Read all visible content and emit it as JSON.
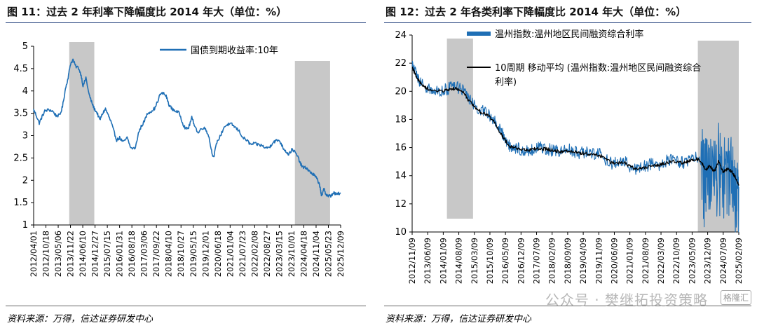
{
  "watermark": {
    "text": "公众号 · 樊继拓投资策略",
    "badge": "格隆汇"
  },
  "panels": [
    {
      "title": "图 11：过去 2 年利率下降幅度比 2014 年大（单位：%）",
      "source": "资料来源：万得，信达证券研发中心",
      "legend": [
        "国债到期收益率:10年"
      ]
    },
    {
      "title": "图 12：过去 2 年各类利率下降幅度比 2014 年大（单位：%）",
      "source": "资料来源：万得，信达证券研发中心",
      "legend": [
        "温州指数:温州地区民间融资综合利率",
        "10周期 移动平均 (温州指数:温州地区民间融资综合利率)"
      ]
    }
  ],
  "chart_data": [
    {
      "type": "line",
      "title": "",
      "ylim": [
        1,
        5
      ],
      "yticks": [
        "1",
        "1.5",
        "2",
        "2.5",
        "3",
        "3.5",
        "4",
        "4.5",
        "5"
      ],
      "xlim": [
        "2012-04-01",
        "2025-12-09"
      ],
      "xtick_labels": [
        "2012/04/01",
        "2012/10/18",
        "2013/05/06",
        "2013/11/22",
        "2014/06/10",
        "2014/12/27",
        "2015/07/15",
        "2016/01/31",
        "2016/08/18",
        "2017/03/06",
        "2017/09/22",
        "2018/04/10",
        "2018/10/27",
        "2019/05/15",
        "2019/12/01",
        "2020/06/18",
        "2021/01/04",
        "2021/07/23",
        "2022/02/08",
        "2022/08/27",
        "2023/03/15",
        "2023/10/01",
        "2024/04/18",
        "2024/11/04",
        "2025/05/23",
        "2025/12/09"
      ],
      "shaded_ranges": [
        [
          "2013-11-01",
          "2014-12-15"
        ],
        [
          "2023-11-25",
          "2025-06-20"
        ]
      ],
      "grid": false,
      "legend_position": "top-right",
      "series": [
        {
          "name": "国债到期收益率:10年",
          "color": "#1f6fb5",
          "x": [
            "2012-04-01",
            "2012-05-15",
            "2012-07-01",
            "2012-08-15",
            "2012-10-01",
            "2012-12-01",
            "2013-02-01",
            "2013-04-01",
            "2013-06-01",
            "2013-07-15",
            "2013-09-01",
            "2013-10-15",
            "2013-11-20",
            "2014-01-01",
            "2014-02-15",
            "2014-04-01",
            "2014-05-15",
            "2014-06-15",
            "2014-08-01",
            "2014-09-15",
            "2014-11-01",
            "2014-12-15",
            "2015-02-01",
            "2015-03-15",
            "2015-05-01",
            "2015-06-15",
            "2015-08-01",
            "2015-09-15",
            "2015-11-01",
            "2015-12-15",
            "2016-02-01",
            "2016-04-01",
            "2016-06-01",
            "2016-08-01",
            "2016-10-15",
            "2016-12-01",
            "2017-01-15",
            "2017-03-01",
            "2017-05-01",
            "2017-07-01",
            "2017-09-01",
            "2017-11-20",
            "2018-01-10",
            "2018-03-01",
            "2018-04-10",
            "2018-06-01",
            "2018-08-01",
            "2018-10-01",
            "2018-12-01",
            "2019-01-15",
            "2019-03-01",
            "2019-04-20",
            "2019-06-01",
            "2019-08-01",
            "2019-10-01",
            "2019-12-01",
            "2020-01-20",
            "2020-03-01",
            "2020-04-10",
            "2020-06-01",
            "2020-08-01",
            "2020-10-01",
            "2020-12-01",
            "2021-02-01",
            "2021-04-01",
            "2021-06-01",
            "2021-08-01",
            "2021-10-01",
            "2021-12-01",
            "2022-02-01",
            "2022-04-01",
            "2022-06-01",
            "2022-08-15",
            "2022-10-15",
            "2022-11-30",
            "2023-01-15",
            "2023-03-15",
            "2023-05-15",
            "2023-07-01",
            "2023-08-15",
            "2023-10-15",
            "2023-12-10",
            "2024-01-20",
            "2024-03-01",
            "2024-04-15",
            "2024-06-01",
            "2024-07-15",
            "2024-09-01",
            "2024-10-15",
            "2024-12-01",
            "2025-01-10",
            "2025-02-01",
            "2025-03-15",
            "2025-04-15",
            "2025-05-23",
            "2025-07-01",
            "2025-08-15",
            "2025-10-01",
            "2025-12-09"
          ],
          "values": [
            3.58,
            3.45,
            3.28,
            3.42,
            3.55,
            3.58,
            3.55,
            3.45,
            3.45,
            3.65,
            4.05,
            4.3,
            4.6,
            4.7,
            4.55,
            4.52,
            4.35,
            4.1,
            4.3,
            3.95,
            3.75,
            3.6,
            3.5,
            3.35,
            3.5,
            3.6,
            3.45,
            3.3,
            3.08,
            2.9,
            2.95,
            2.85,
            2.95,
            2.72,
            2.72,
            3.05,
            3.2,
            3.3,
            3.5,
            3.55,
            3.62,
            3.92,
            3.95,
            3.88,
            3.7,
            3.6,
            3.55,
            3.5,
            3.25,
            3.15,
            3.18,
            3.4,
            3.25,
            3.05,
            3.18,
            3.15,
            3.0,
            2.7,
            2.5,
            2.85,
            3.0,
            3.2,
            3.25,
            3.25,
            3.18,
            3.1,
            2.95,
            2.9,
            2.8,
            2.82,
            2.8,
            2.78,
            2.72,
            2.75,
            2.85,
            2.88,
            2.9,
            2.73,
            2.65,
            2.58,
            2.7,
            2.6,
            2.5,
            2.35,
            2.28,
            2.28,
            2.2,
            2.15,
            2.1,
            2.0,
            1.85,
            1.62,
            1.82,
            1.68,
            1.65,
            1.65,
            1.72,
            1.68,
            1.72
          ]
        }
      ]
    },
    {
      "type": "line",
      "title": "",
      "ylim": [
        10,
        24
      ],
      "yticks": [
        "10",
        "12",
        "14",
        "16",
        "18",
        "20",
        "22",
        "24"
      ],
      "xlim": [
        "2012-11-09",
        "2025-05-09"
      ],
      "xtick_labels": [
        "2012/11/09",
        "2013/06/09",
        "2014/01/09",
        "2014/08/09",
        "2015/03/09",
        "2015/10/09",
        "2016/05/09",
        "2016/12/09",
        "2017/07/09",
        "2018/02/09",
        "2018/09/09",
        "2019/04/09",
        "2019/11/09",
        "2020/06/09",
        "2021/01/09",
        "2021/08/09",
        "2022/03/09",
        "2022/10/09",
        "2023/05/09",
        "2023/12/09",
        "2024/07/09",
        "2025/02/09"
      ],
      "shaded_ranges": [
        [
          "2014-03-10",
          "2015-03-10"
        ],
        [
          "2023-10-15",
          "2025-05-09"
        ]
      ],
      "grid": false,
      "legend_position": "top",
      "series": [
        {
          "name": "温州指数:温州地区民间融资综合利率",
          "color": "#1f6fb5",
          "x": [
            "2012-11-09",
            "2013-01-01",
            "2013-03-01",
            "2013-06-01",
            "2013-09-01",
            "2014-01-01",
            "2014-04-01",
            "2014-07-01",
            "2014-10-01",
            "2015-01-01",
            "2015-04-01",
            "2015-07-01",
            "2015-10-01",
            "2016-01-01",
            "2016-04-01",
            "2016-06-01",
            "2016-08-01",
            "2016-10-01",
            "2017-01-01",
            "2017-04-01",
            "2017-07-01",
            "2017-10-01",
            "2018-01-01",
            "2018-04-01",
            "2018-07-01",
            "2018-10-01",
            "2019-01-01",
            "2019-04-01",
            "2019-07-01",
            "2019-10-01",
            "2020-01-01",
            "2020-04-01",
            "2020-07-01",
            "2020-10-01",
            "2021-01-01",
            "2021-04-01",
            "2021-07-01",
            "2021-10-01",
            "2022-01-01",
            "2022-04-01",
            "2022-07-01",
            "2022-10-01",
            "2023-01-01",
            "2023-04-01",
            "2023-07-01",
            "2023-10-01",
            "2023-12-01",
            "2024-02-01",
            "2024-04-01",
            "2024-06-01",
            "2024-08-01",
            "2024-10-01",
            "2024-12-01",
            "2025-02-01",
            "2025-04-01",
            "2025-05-09"
          ],
          "values": [
            21.9,
            21.2,
            20.7,
            20.2,
            20.1,
            20.0,
            20.2,
            20.3,
            20.2,
            19.5,
            19.0,
            18.6,
            18.4,
            18.0,
            17.2,
            16.6,
            16.1,
            16.0,
            15.9,
            15.8,
            15.9,
            16.0,
            15.9,
            15.8,
            15.7,
            15.9,
            15.8,
            15.6,
            15.7,
            15.5,
            15.6,
            15.2,
            14.9,
            14.9,
            15.0,
            14.6,
            14.5,
            14.7,
            14.8,
            14.7,
            15.0,
            15.1,
            15.0,
            14.9,
            15.2,
            15.3,
            15.1,
            14.2,
            14.8,
            14.0,
            15.3,
            14.1,
            14.6,
            14.4,
            13.7,
            13.2
          ],
          "noise_band": [
            [
              0.45,
              0.45
            ],
            [
              0.45,
              0.45
            ],
            [
              0.45,
              0.45
            ],
            [
              0.45,
              0.45
            ],
            [
              0.45,
              0.45
            ],
            [
              0.45,
              0.45
            ],
            [
              0.45,
              0.45
            ],
            [
              0.45,
              0.45
            ],
            [
              0.45,
              0.45
            ],
            [
              0.45,
              0.45
            ],
            [
              0.45,
              0.45
            ],
            [
              0.45,
              0.45
            ],
            [
              0.45,
              0.45
            ],
            [
              0.45,
              0.45
            ],
            [
              0.45,
              0.45
            ],
            [
              0.45,
              0.45
            ],
            [
              0.45,
              0.45
            ],
            [
              0.45,
              0.45
            ],
            [
              0.45,
              0.45
            ],
            [
              0.45,
              0.45
            ],
            [
              0.45,
              0.45
            ],
            [
              0.45,
              0.45
            ],
            [
              0.45,
              0.45
            ],
            [
              0.45,
              0.45
            ],
            [
              0.45,
              0.45
            ],
            [
              0.45,
              0.45
            ],
            [
              0.45,
              0.45
            ],
            [
              0.45,
              0.45
            ],
            [
              0.45,
              0.45
            ],
            [
              0.45,
              0.45
            ],
            [
              0.45,
              0.45
            ],
            [
              0.45,
              0.45
            ],
            [
              0.45,
              0.45
            ],
            [
              0.45,
              0.45
            ],
            [
              0.45,
              0.45
            ],
            [
              0.45,
              0.45
            ],
            [
              0.45,
              0.45
            ],
            [
              0.45,
              0.45
            ],
            [
              0.45,
              0.45
            ],
            [
              0.45,
              0.45
            ],
            [
              0.45,
              0.45
            ],
            [
              0.45,
              0.45
            ],
            [
              0.45,
              0.45
            ],
            [
              0.45,
              0.45
            ],
            [
              0.45,
              0.45
            ],
            [
              0.45,
              0.45
            ],
            [
              2.5,
              4.2
            ],
            [
              2.5,
              4.2
            ],
            [
              2.5,
              4.2
            ],
            [
              2.5,
              4.2
            ],
            [
              2.5,
              4.2
            ],
            [
              2.5,
              4.2
            ],
            [
              2.5,
              4.2
            ],
            [
              2.5,
              4.2
            ],
            [
              2.5,
              4.2
            ],
            [
              2.5,
              4.2
            ]
          ]
        },
        {
          "name": "10周期 移动平均 (温州指数:温州地区民间融资综合利率)",
          "color": "#000000",
          "x": [
            "2012-11-09",
            "2013-01-01",
            "2013-03-01",
            "2013-06-01",
            "2013-09-01",
            "2014-01-01",
            "2014-04-01",
            "2014-07-01",
            "2014-10-01",
            "2015-01-01",
            "2015-04-01",
            "2015-07-01",
            "2015-10-01",
            "2016-01-01",
            "2016-04-01",
            "2016-06-01",
            "2016-08-01",
            "2016-10-01",
            "2017-01-01",
            "2017-04-01",
            "2017-07-01",
            "2017-10-01",
            "2018-01-01",
            "2018-04-01",
            "2018-07-01",
            "2018-10-01",
            "2019-01-01",
            "2019-04-01",
            "2019-07-01",
            "2019-10-01",
            "2020-01-01",
            "2020-04-01",
            "2020-07-01",
            "2020-10-01",
            "2021-01-01",
            "2021-04-01",
            "2021-07-01",
            "2021-10-01",
            "2022-01-01",
            "2022-04-01",
            "2022-07-01",
            "2022-10-01",
            "2023-01-01",
            "2023-04-01",
            "2023-07-01",
            "2023-10-01",
            "2023-12-01",
            "2024-02-01",
            "2024-04-01",
            "2024-06-01",
            "2024-08-01",
            "2024-10-01",
            "2024-12-01",
            "2025-02-01",
            "2025-04-01",
            "2025-05-09"
          ],
          "values": [
            21.7,
            21.1,
            20.6,
            20.2,
            20.1,
            20.0,
            20.1,
            20.2,
            20.1,
            19.4,
            18.9,
            18.5,
            18.3,
            17.8,
            17.0,
            16.5,
            16.1,
            16.0,
            15.9,
            15.8,
            15.9,
            15.9,
            15.9,
            15.8,
            15.7,
            15.8,
            15.7,
            15.6,
            15.6,
            15.5,
            15.5,
            15.2,
            14.9,
            14.9,
            14.9,
            14.6,
            14.5,
            14.6,
            14.7,
            14.7,
            14.9,
            15.0,
            15.0,
            14.9,
            15.1,
            15.2,
            15.0,
            14.4,
            14.7,
            14.3,
            15.0,
            14.3,
            14.5,
            14.3,
            13.8,
            13.3
          ]
        }
      ]
    }
  ]
}
